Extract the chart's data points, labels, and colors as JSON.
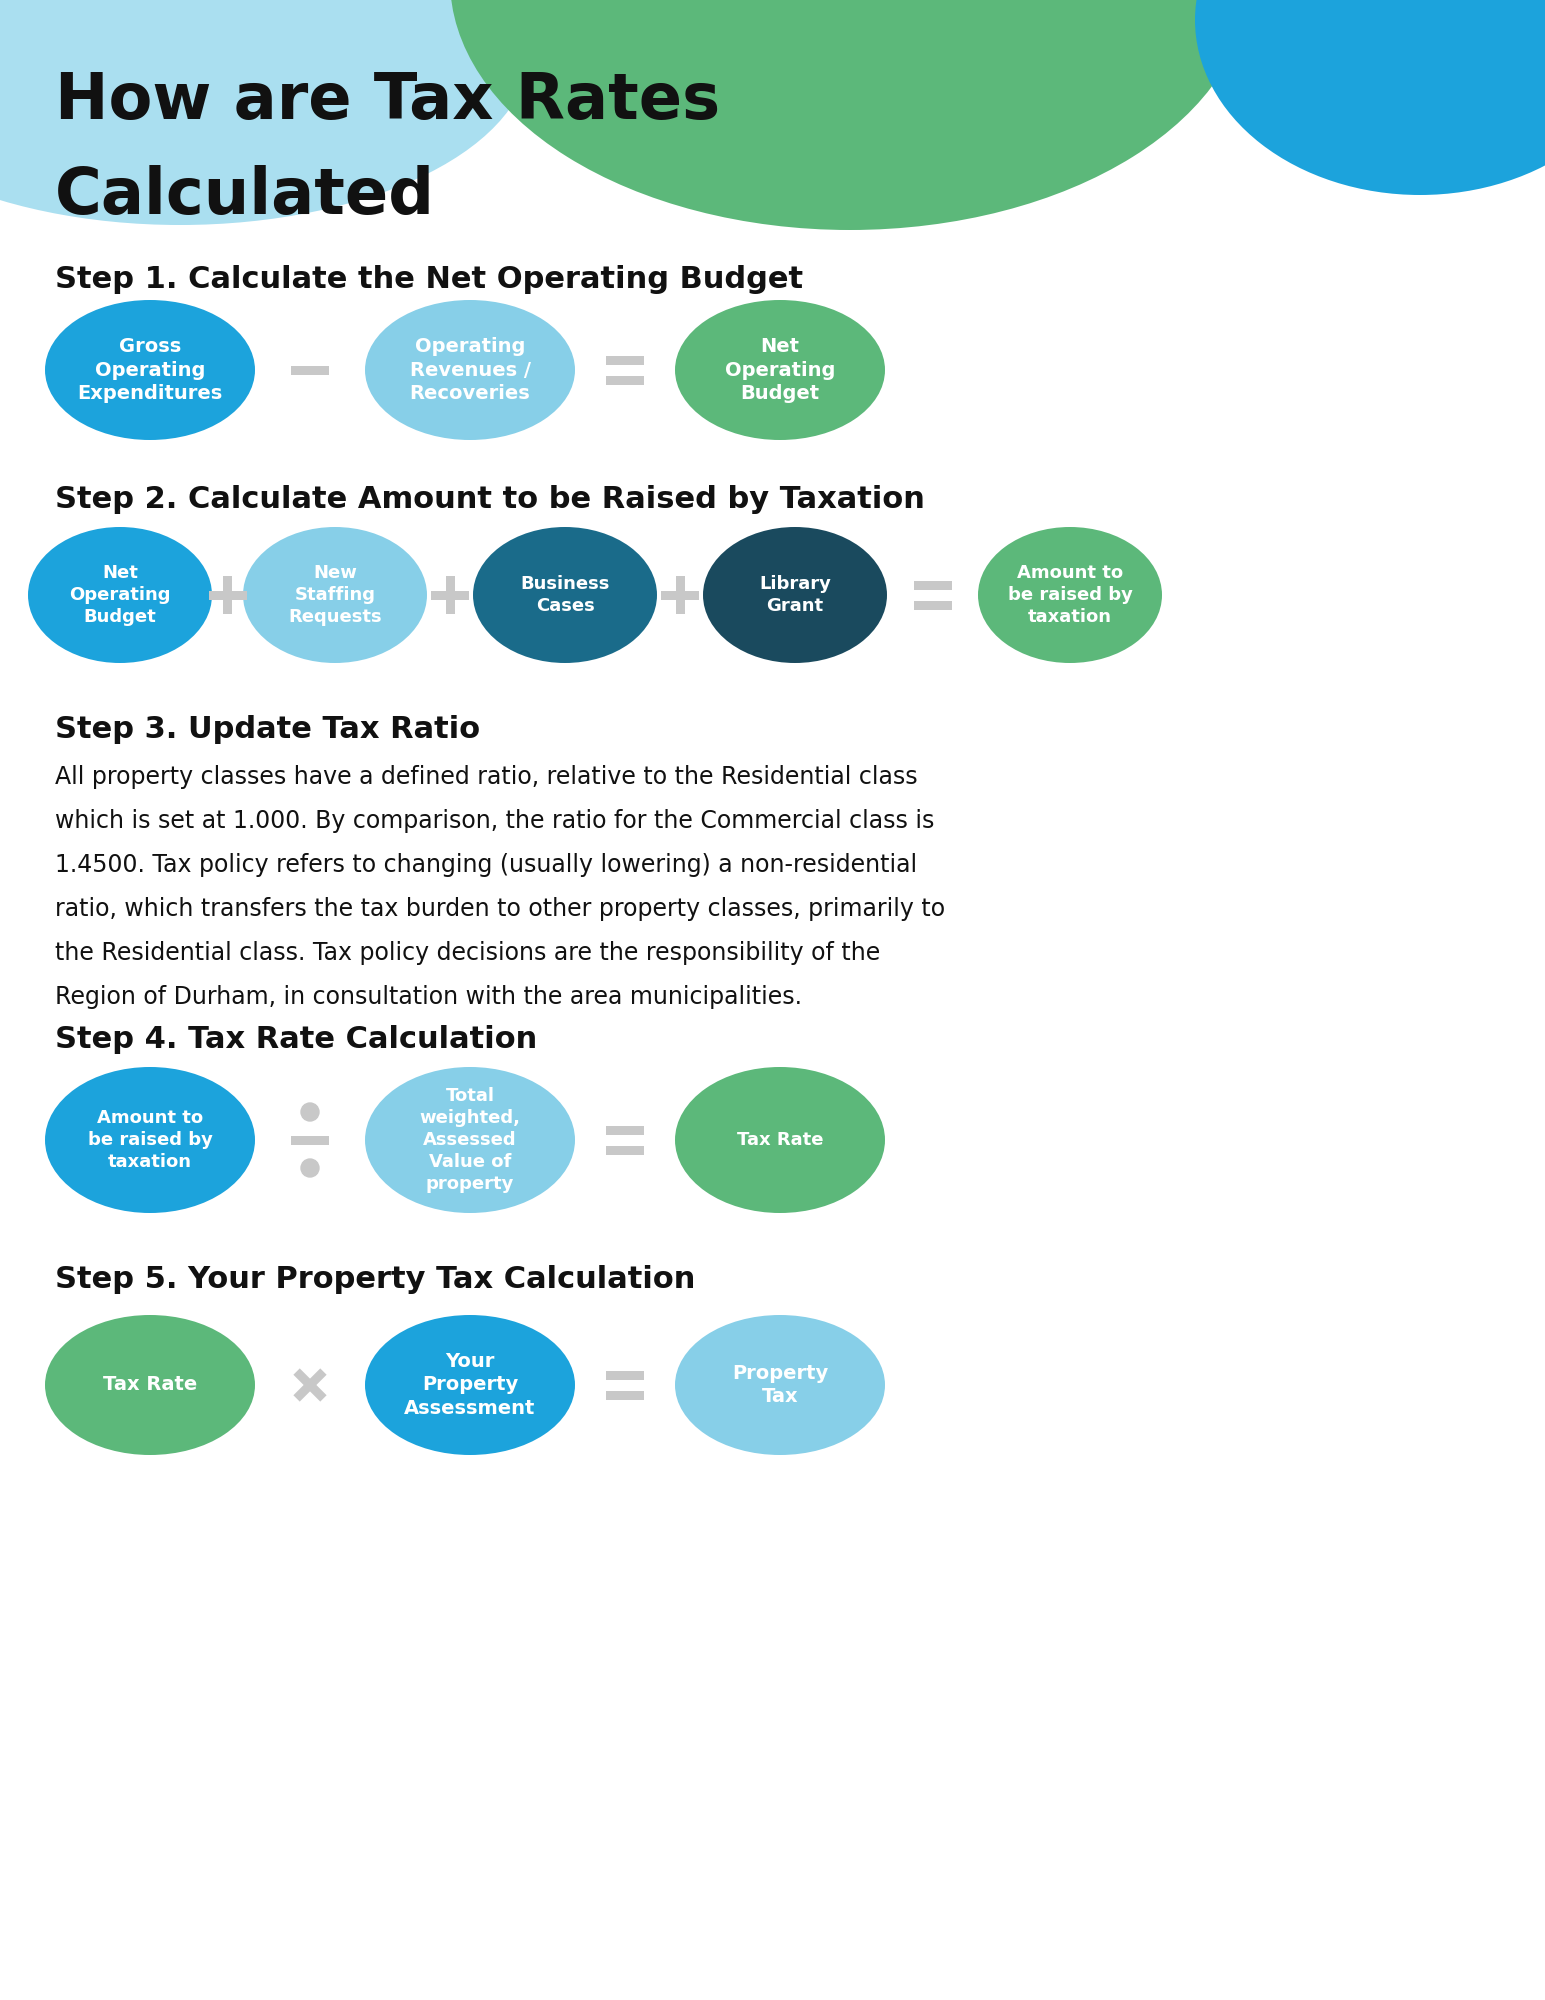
{
  "title_line1": "How are Tax Rates",
  "title_line2": "Calculated",
  "title_fontsize": 46,
  "background_color": "#ffffff",
  "step1_heading": "Step 1. Calculate the Net Operating Budget",
  "step1_circles": [
    {
      "label": "Gross\nOperating\nExpenditures",
      "color": "#1ca3dc"
    },
    {
      "label": "Operating\nRevenues /\nRecoveries",
      "color": "#87cfe8"
    },
    {
      "label": "Net\nOperating\nBudget",
      "color": "#5cb87a"
    }
  ],
  "step1_operators": [
    "−",
    "="
  ],
  "step2_heading": "Step 2. Calculate Amount to be Raised by Taxation",
  "step2_circles": [
    {
      "label": "Net\nOperating\nBudget",
      "color": "#1ca3dc"
    },
    {
      "label": "New\nStaffing\nRequests",
      "color": "#87cfe8"
    },
    {
      "label": "Business\nCases",
      "color": "#1a6b8a"
    },
    {
      "label": "Library\nGrant",
      "color": "#1a4a5e"
    },
    {
      "label": "Amount to\nbe raised by\ntaxation",
      "color": "#5cb87a"
    }
  ],
  "step2_operators": [
    "+",
    "+",
    "+",
    "="
  ],
  "step3_heading": "Step 3. Update Tax Ratio",
  "step3_lines": [
    "All property classes have a defined ratio, relative to the Residential class",
    "which is set at 1.000. By comparison, the ratio for the Commercial class is",
    "1.4500. Tax policy refers to changing (usually lowering) a non-residential",
    "ratio, which transfers the tax burden to other property classes, primarily to",
    "the Residential class. Tax policy decisions are the responsibility of the",
    "Region of Durham, in consultation with the area municipalities."
  ],
  "step4_heading": "Step 4. Tax Rate Calculation",
  "step4_circles": [
    {
      "label": "Amount to\nbe raised by\ntaxation",
      "color": "#1ca3dc"
    },
    {
      "label": "Total\nweighted,\nAssessed\nValue of\nproperty",
      "color": "#87cfe8"
    },
    {
      "label": "Tax Rate",
      "color": "#5cb87a"
    }
  ],
  "step4_operators": [
    "÷",
    "="
  ],
  "step5_heading": "Step 5. Your Property Tax Calculation",
  "step5_circles": [
    {
      "label": "Tax Rate",
      "color": "#5cb87a"
    },
    {
      "label": "Your\nProperty\nAssessment",
      "color": "#1ca3dc"
    },
    {
      "label": "Property\nTax",
      "color": "#87cfe8"
    }
  ],
  "step5_operators": [
    "×",
    "="
  ],
  "circle_text_color": "#ffffff",
  "step_heading_fontsize": 22,
  "body_text_fontsize": 17,
  "header_light_blue": "#aadff0",
  "header_green": "#5cb87a",
  "header_blue": "#1ca3dc"
}
